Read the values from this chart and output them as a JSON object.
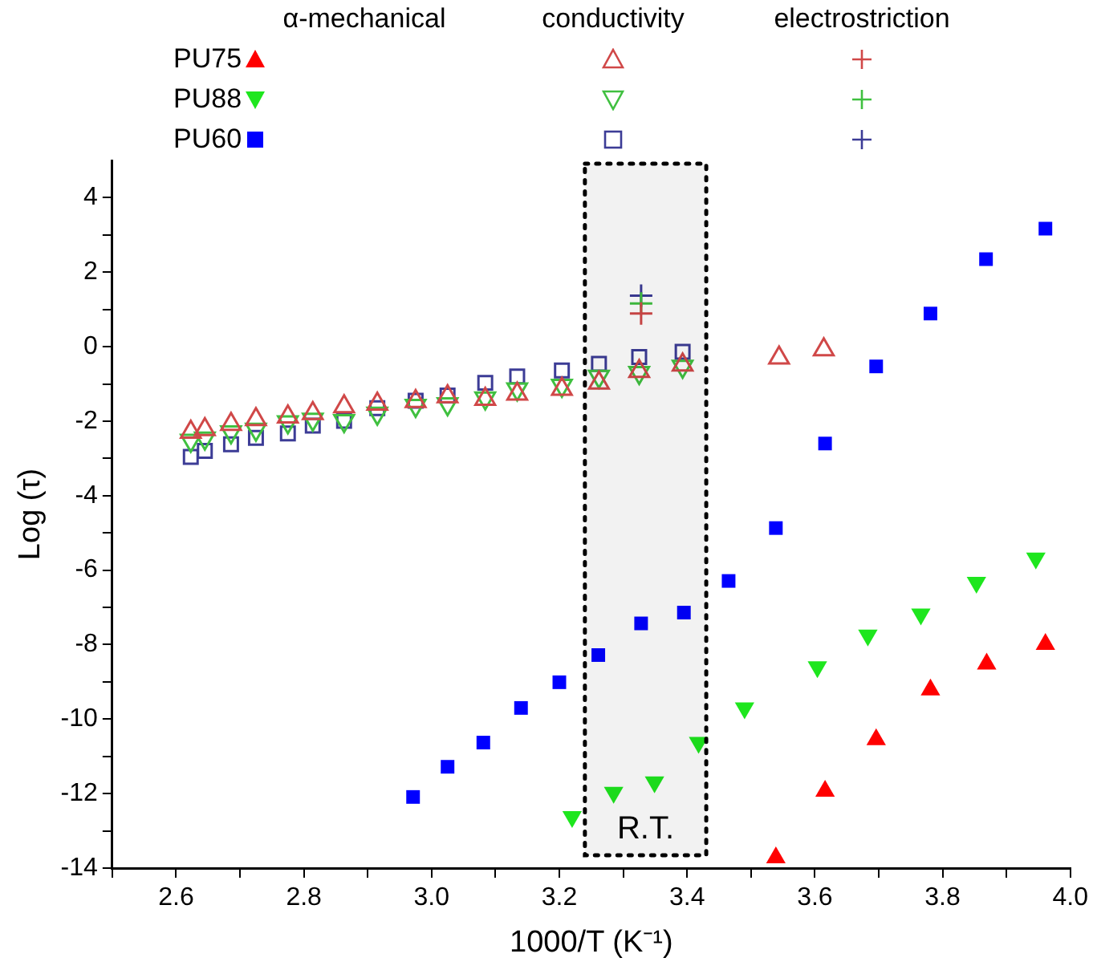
{
  "chart_data": {
    "type": "scatter",
    "xlabel": "1000/T (K⁻¹)",
    "ylabel": "Log (τ)",
    "xlim": [
      2.5,
      4.0
    ],
    "ylim": [
      -14,
      5
    ],
    "xticks": [
      {
        "value": 2.5,
        "label": null
      },
      2.6,
      {
        "value": 2.7,
        "label": null
      },
      2.8,
      {
        "value": 2.9,
        "label": null
      },
      {
        "value": 3.0,
        "label": "3.0"
      },
      {
        "value": 3.1,
        "label": null
      },
      3.2,
      {
        "value": 3.3,
        "label": null
      },
      3.4,
      {
        "value": 3.5,
        "label": null
      },
      3.6,
      {
        "value": 3.7,
        "label": null
      },
      3.8,
      {
        "value": 3.9,
        "label": null
      },
      {
        "value": 4.0,
        "label": "4.0"
      }
    ],
    "yticks": [
      -14,
      {
        "value": -13,
        "label": null
      },
      -12,
      {
        "value": -11,
        "label": null
      },
      -10,
      {
        "value": -9,
        "label": null
      },
      -8,
      {
        "value": -7,
        "label": null
      },
      -6,
      {
        "value": -5,
        "label": null
      },
      -4,
      {
        "value": -3,
        "label": null
      },
      -2,
      {
        "value": -1,
        "label": null
      },
      0,
      {
        "value": 1,
        "label": null
      },
      2,
      {
        "value": 3,
        "label": null
      },
      4
    ],
    "grid": false,
    "legend": "top left",
    "annotations": [
      "α-mechanical",
      "conductivity",
      "electrostriction"
    ],
    "bands": [
      {
        "axis": "x",
        "from": 3.24,
        "to": 3.43,
        "label": "R.T.",
        "color": "#000000"
      }
    ],
    "series": [
      {
        "name": "PU75",
        "color": "#ff0000",
        "marker": "triangle",
        "x": [
          3.539,
          3.616,
          3.696,
          3.781,
          3.869,
          3.961
        ],
        "values": [
          -13.72,
          -11.93,
          -10.55,
          -9.21,
          -8.52,
          -7.99
        ]
      },
      {
        "name": "PU88",
        "color": "#1ee61e",
        "marker": "triangle-down",
        "x": [
          3.22,
          3.285,
          3.349,
          3.418,
          3.49,
          3.604,
          3.683,
          3.766,
          3.853,
          3.946
        ],
        "values": [
          -12.62,
          -11.97,
          -11.69,
          -10.63,
          -9.7,
          -8.6,
          -7.75,
          -7.18,
          -6.33,
          -5.68
        ]
      },
      {
        "name": "PU60",
        "color": "#0000ff",
        "marker": "square",
        "x": [
          2.971,
          3.025,
          3.081,
          3.14,
          3.2,
          3.261,
          3.328,
          3.395,
          3.465,
          3.539,
          3.616,
          3.696,
          3.781,
          3.868,
          3.961
        ],
        "values": [
          -12.09,
          -11.28,
          -10.63,
          -9.7,
          -9.01,
          -8.28,
          -7.43,
          -7.14,
          -6.29,
          -4.87,
          -2.6,
          -0.53,
          0.89,
          2.35,
          3.17
        ]
      },
      {
        "color": "#d04848",
        "marker": "triangle-open",
        "x": [
          2.623,
          2.645,
          2.686,
          2.725,
          2.775,
          2.814,
          2.863,
          2.915,
          2.975,
          3.025,
          3.084,
          3.134,
          3.204,
          3.262,
          3.325,
          3.393,
          3.544,
          3.614
        ],
        "values": [
          -2.29,
          -2.22,
          -2.08,
          -1.95,
          -1.88,
          -1.79,
          -1.61,
          -1.54,
          -1.47,
          -1.34,
          -1.41,
          -1.27,
          -1.14,
          -0.97,
          -0.66,
          -0.49,
          -0.3,
          -0.08
        ]
      },
      {
        "color": "#40c040",
        "marker": "triangle-down-open",
        "x": [
          2.623,
          2.645,
          2.686,
          2.725,
          2.775,
          2.814,
          2.863,
          2.915,
          2.975,
          3.025,
          3.084,
          3.134,
          3.204,
          3.262,
          3.325,
          3.393
        ],
        "values": [
          -2.52,
          -2.46,
          -2.29,
          -2.22,
          -2.02,
          -1.95,
          -1.99,
          -1.79,
          -1.58,
          -1.54,
          -1.38,
          -1.14,
          -1.04,
          -0.8,
          -0.7,
          -0.53
        ]
      },
      {
        "color": "#3c3c96",
        "marker": "square-open",
        "x": [
          2.623,
          2.645,
          2.686,
          2.725,
          2.775,
          2.814,
          2.863,
          2.915,
          2.975,
          3.025,
          3.084,
          3.134,
          3.204,
          3.262,
          3.325,
          3.393
        ],
        "values": [
          -2.96,
          -2.8,
          -2.62,
          -2.45,
          -2.33,
          -2.12,
          -1.99,
          -1.65,
          -1.45,
          -1.31,
          -0.97,
          -0.8,
          -0.64,
          -0.46,
          -0.28,
          -0.14
        ]
      },
      {
        "color": "#d04848",
        "marker": "cross",
        "x": [
          3.328
        ],
        "values": [
          0.89
        ]
      },
      {
        "color": "#40c040",
        "marker": "cross",
        "x": [
          3.328
        ],
        "values": [
          1.16
        ]
      },
      {
        "color": "#3c3c96",
        "marker": "cross",
        "x": [
          3.328
        ],
        "values": [
          1.37
        ]
      }
    ]
  }
}
